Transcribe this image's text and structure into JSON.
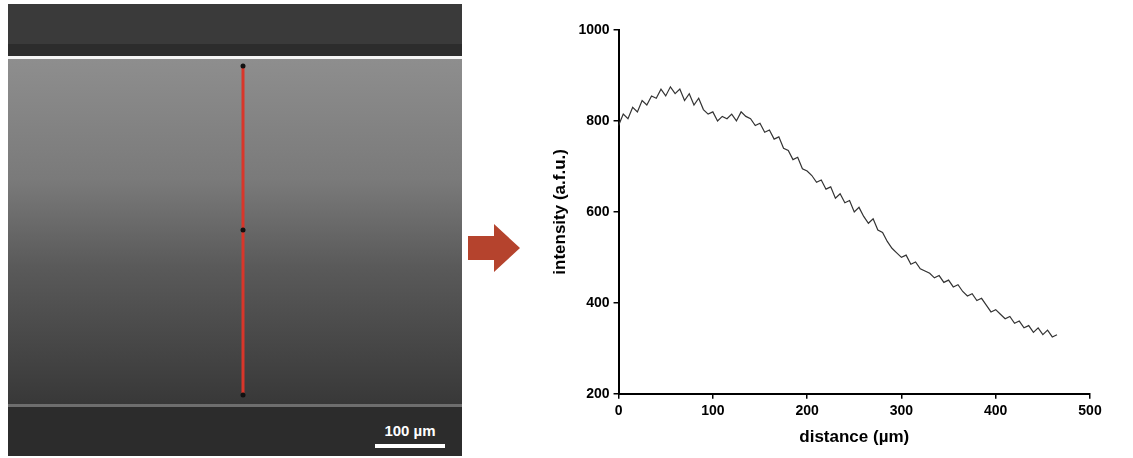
{
  "chart_data": {
    "type": "line",
    "x_label": "distance (µm)",
    "y_label": "intensity (a.f.u.)",
    "x": [
      0,
      5,
      10,
      15,
      20,
      25,
      30,
      35,
      40,
      45,
      50,
      55,
      60,
      65,
      70,
      75,
      80,
      85,
      90,
      95,
      100,
      105,
      110,
      115,
      120,
      125,
      130,
      135,
      140,
      145,
      150,
      155,
      160,
      165,
      170,
      175,
      180,
      185,
      190,
      195,
      200,
      205,
      210,
      215,
      220,
      225,
      230,
      235,
      240,
      245,
      250,
      255,
      260,
      265,
      270,
      275,
      280,
      285,
      290,
      295,
      300,
      305,
      310,
      315,
      320,
      325,
      330,
      335,
      340,
      345,
      350,
      355,
      360,
      365,
      370,
      375,
      380,
      385,
      390,
      395,
      400,
      405,
      410,
      415,
      420,
      425,
      430,
      435,
      440,
      445,
      450,
      455,
      460,
      465
    ],
    "values": [
      790,
      815,
      805,
      830,
      820,
      845,
      835,
      855,
      850,
      870,
      855,
      875,
      860,
      870,
      845,
      860,
      835,
      850,
      825,
      815,
      820,
      800,
      810,
      805,
      815,
      800,
      820,
      810,
      805,
      790,
      795,
      775,
      780,
      760,
      765,
      740,
      735,
      715,
      720,
      695,
      690,
      680,
      665,
      670,
      650,
      655,
      630,
      640,
      620,
      625,
      600,
      610,
      590,
      575,
      585,
      560,
      555,
      535,
      520,
      510,
      500,
      505,
      485,
      490,
      475,
      470,
      465,
      455,
      460,
      445,
      450,
      435,
      440,
      425,
      415,
      420,
      405,
      410,
      395,
      380,
      385,
      375,
      365,
      370,
      355,
      360,
      345,
      350,
      335,
      345,
      330,
      340,
      325,
      330
    ],
    "color": "#333333",
    "xlim": [
      0,
      500
    ],
    "xticks": [
      0,
      100,
      200,
      300,
      400,
      500
    ],
    "ylim": [
      200,
      1000
    ],
    "yticks": [
      200,
      400,
      600,
      800,
      1000
    ],
    "grid": false
  },
  "image": {
    "scale_bar_label": "100 µm"
  }
}
